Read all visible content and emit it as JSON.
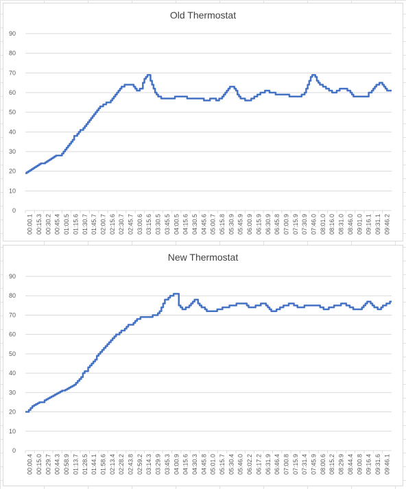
{
  "chart_data": [
    {
      "type": "line",
      "title": "Old Thermostat",
      "ylim": [
        0,
        90
      ],
      "yticks": [
        0,
        10,
        20,
        30,
        40,
        50,
        60,
        70,
        80,
        90
      ],
      "xticks": [
        "00:00.1",
        "00:15.3",
        "00:30.2",
        "00:45.4",
        "01:00.5",
        "01:15.6",
        "01:30.7",
        "01:45.7",
        "02:00.7",
        "02:15.6",
        "02:30.7",
        "02:45.7",
        "03:00.6",
        "03:15.6",
        "03:30.5",
        "03:45.5",
        "04:00.5",
        "04:15.6",
        "04:30.5",
        "04:45.6",
        "05:00.7",
        "05:15.8",
        "05:30.9",
        "05:45.9",
        "06:00.9",
        "06:15.9",
        "06:30.9",
        "06:45.8",
        "07:00.9",
        "07:15.9",
        "07:30.9",
        "07:46.0",
        "08:01.0",
        "08:16.0",
        "08:31.0",
        "08:46.0",
        "09:01.0",
        "09:16.1",
        "09:31.1",
        "09:46.2"
      ],
      "grid": true,
      "series": [
        {
          "color": "#4472c4",
          "values": [
            19,
            19.5,
            20,
            20.5,
            21,
            21.5,
            22,
            22.5,
            23,
            23.5,
            24,
            24,
            24,
            24.5,
            25,
            25.5,
            26,
            26.5,
            27,
            27.5,
            28,
            28,
            28,
            28,
            29,
            30,
            31,
            32,
            33,
            34,
            35,
            36,
            38,
            38,
            39,
            40,
            41,
            41,
            42,
            43,
            44,
            45,
            46,
            47,
            48,
            49,
            50,
            51,
            52,
            53,
            53,
            54,
            54,
            55,
            55,
            55,
            56,
            57,
            58,
            59,
            60,
            61,
            62,
            63,
            63,
            64,
            64,
            64,
            64,
            64,
            64,
            63,
            62,
            61,
            61,
            62,
            62,
            65,
            67,
            68,
            69,
            69,
            66,
            64,
            62,
            60,
            59,
            58,
            58,
            57,
            57,
            57,
            57,
            57,
            57,
            57,
            57,
            57,
            58,
            58,
            58,
            58,
            58,
            58,
            58,
            58,
            57,
            57,
            57,
            57,
            57,
            57,
            57,
            57,
            57,
            57,
            57,
            56,
            56,
            56,
            56,
            57,
            57,
            57,
            57,
            56,
            56,
            57,
            57,
            58,
            59,
            60,
            61,
            62,
            63,
            63,
            63,
            62,
            61,
            59,
            58,
            57,
            57,
            57,
            56,
            56,
            56,
            56,
            57,
            57,
            58,
            58,
            59,
            59,
            60,
            60,
            60,
            61,
            61,
            61,
            60,
            60,
            60,
            60,
            59,
            59,
            59,
            59,
            59,
            59,
            59,
            59,
            59,
            58,
            58,
            58,
            58,
            58,
            58,
            58,
            58,
            59,
            59,
            60,
            62,
            64,
            66,
            68,
            69,
            69,
            68,
            66,
            65,
            64,
            64,
            63,
            63,
            62,
            62,
            61,
            61,
            60,
            60,
            60,
            61,
            61,
            62,
            62,
            62,
            62,
            62,
            61,
            61,
            60,
            59,
            58,
            58,
            58,
            58,
            58,
            58,
            58,
            58,
            58,
            58,
            60,
            60,
            61,
            62,
            63,
            64,
            64,
            65,
            65,
            64,
            63,
            62,
            61,
            61,
            61,
            61
          ]
        }
      ]
    },
    {
      "type": "line",
      "title": "New Thermostat",
      "ylim": [
        0,
        90
      ],
      "yticks": [
        0,
        10,
        20,
        30,
        40,
        50,
        60,
        70,
        80,
        90
      ],
      "xticks": [
        "00:00.4",
        "00:15.0",
        "00:29.7",
        "00:44.3",
        "00:58.9",
        "01:13.7",
        "01:28.5",
        "01:44.1",
        "01:58.6",
        "02:13.4",
        "02:28.2",
        "02:43.8",
        "02:59.2",
        "03:14.3",
        "03:29.9",
        "03:45.3",
        "04:00.9",
        "04:15.6",
        "04:30.3",
        "04:45.8",
        "05:01.0",
        "05:15.7",
        "05:30.4",
        "05:46.0",
        "06:02.2",
        "06:17.2",
        "06:31.9",
        "06:46.4",
        "07:00.8",
        "07:15.9",
        "07:31.4",
        "07:45.9",
        "08:00.6",
        "08:15.2",
        "08:29.9",
        "08:44.4",
        "09:00.8",
        "09:16.4",
        "09:31.6",
        "09:46.1"
      ],
      "grid": true,
      "series": [
        {
          "color": "#4472c4",
          "values": [
            20,
            20,
            21,
            22,
            23,
            23.5,
            24,
            24.5,
            25,
            25,
            25,
            26,
            26.5,
            27,
            27.5,
            28,
            28.5,
            29,
            29.5,
            30,
            30.5,
            31,
            31,
            31.5,
            32,
            32.5,
            33,
            33.5,
            34,
            35,
            36,
            37,
            38,
            40,
            41,
            41,
            43,
            44,
            45,
            46,
            47,
            49,
            50,
            51,
            52,
            53,
            54,
            55,
            56,
            57,
            58,
            59,
            60,
            60,
            61,
            62,
            62,
            63,
            64,
            65,
            65,
            65,
            66,
            67,
            68,
            68,
            69,
            69,
            69,
            69,
            69,
            69,
            69,
            70,
            70,
            70,
            71,
            72,
            74,
            76,
            78,
            78,
            79,
            80,
            80,
            81,
            81,
            81,
            75,
            74,
            73,
            73,
            74,
            74,
            75,
            76,
            77,
            78,
            78,
            76,
            75,
            74,
            74,
            73,
            72,
            72,
            72,
            72,
            72,
            72,
            73,
            73,
            73,
            74,
            74,
            74,
            74,
            75,
            75,
            75,
            75,
            76,
            76,
            76,
            76,
            76,
            76,
            75,
            74,
            74,
            74,
            74,
            75,
            75,
            75,
            76,
            76,
            76,
            75,
            74,
            73,
            72,
            72,
            72,
            73,
            73,
            74,
            74,
            75,
            75,
            75,
            76,
            76,
            76,
            75,
            75,
            74,
            74,
            74,
            74,
            75,
            75,
            75,
            75,
            75,
            75,
            75,
            75,
            75,
            74,
            74,
            73,
            73,
            73,
            74,
            74,
            74,
            75,
            75,
            75,
            75,
            76,
            76,
            76,
            75,
            75,
            74,
            74,
            73,
            73,
            73,
            73,
            73,
            74,
            75,
            76,
            77,
            77,
            76,
            75,
            74,
            74,
            73,
            73,
            74,
            75,
            75,
            76,
            76,
            77,
            77
          ]
        }
      ]
    }
  ]
}
